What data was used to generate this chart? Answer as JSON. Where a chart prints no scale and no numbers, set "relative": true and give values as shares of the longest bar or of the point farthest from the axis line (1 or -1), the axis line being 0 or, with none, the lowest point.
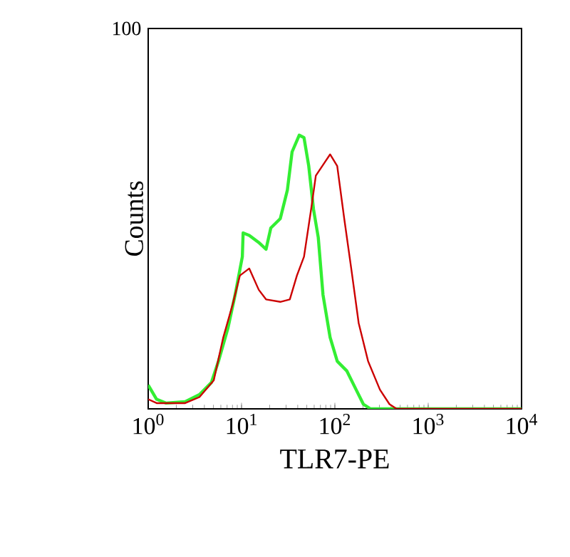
{
  "chart_data": {
    "type": "line",
    "relative": true,
    "xlabel": "TLR7-PE",
    "ylabel": "Counts",
    "log": "x",
    "xlim": [
      1,
      10000
    ],
    "xticks": [
      {
        "value": 1,
        "label": "10$^{0}$"
      },
      {
        "value": 10,
        "label": "10$^{1}$"
      },
      {
        "value": 100,
        "label": "10$^{2}$"
      },
      {
        "value": 1000,
        "label": "10$^{3}$"
      },
      {
        "value": 10000,
        "label": "10$^{4}$"
      }
    ],
    "annotations": [
      "100"
    ],
    "series": [
      {
        "color": "#33ee33",
        "x": [
          1,
          1.23,
          1.56,
          2.49,
          3.54,
          4.75,
          5.66,
          7.16,
          8.54,
          10.2,
          10.4,
          12.1,
          15.3,
          18.3,
          20.6,
          26.0,
          31.0,
          34.8,
          41.5,
          46.7,
          52.5,
          59.0,
          66.4,
          74.6,
          88.9,
          106,
          134,
          169,
          202,
          241,
          433,
          10000
        ],
        "values": [
          0.087,
          0.035,
          0.021,
          0.026,
          0.052,
          0.096,
          0.174,
          0.296,
          0.417,
          0.556,
          0.643,
          0.634,
          0.608,
          0.583,
          0.661,
          0.695,
          0.8,
          0.939,
          1,
          0.991,
          0.887,
          0.73,
          0.626,
          0.417,
          0.261,
          0.174,
          0.139,
          0.07,
          0.017,
          0,
          0,
          0
        ]
      },
      {
        "color": "#cc0000",
        "x": [
          1,
          1.23,
          2.49,
          3.54,
          5.04,
          6.37,
          8.05,
          9.6,
          12.1,
          15.3,
          18.3,
          26.0,
          32.9,
          39.2,
          46.7,
          55.7,
          62.5,
          79.1,
          88.9,
          106,
          126,
          151,
          180,
          227,
          304,
          385,
          459,
          10000
        ],
        "values": [
          0.035,
          0.021,
          0.021,
          0.043,
          0.104,
          0.261,
          0.383,
          0.487,
          0.513,
          0.435,
          0.4,
          0.391,
          0.4,
          0.487,
          0.556,
          0.73,
          0.852,
          0.904,
          0.93,
          0.887,
          0.695,
          0.504,
          0.313,
          0.174,
          0.07,
          0.017,
          0,
          0
        ]
      }
    ]
  }
}
